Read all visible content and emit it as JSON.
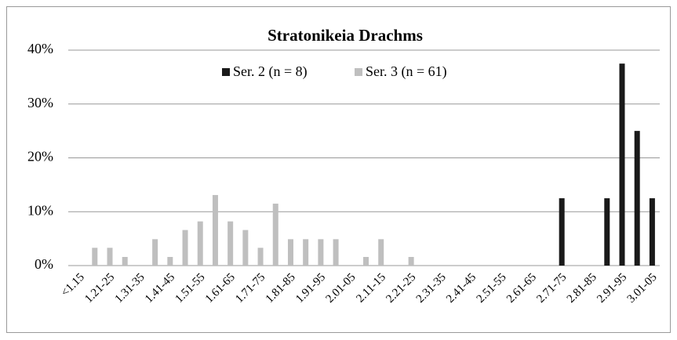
{
  "chart_data": {
    "type": "bar",
    "title": "Stratonikeia Drachms",
    "categories": [
      "<1.15",
      null,
      "1.21-25",
      null,
      "1.31-35",
      null,
      "1.41-45",
      null,
      "1.51-55",
      null,
      "1.61-65",
      null,
      "1.71-75",
      null,
      "1.81-85",
      null,
      "1.91-95",
      null,
      "2.01-05",
      null,
      "2.11-15",
      null,
      "2.21-25",
      null,
      "2.31-35",
      null,
      "2.41-45",
      null,
      "2.51-55",
      null,
      "2.61-65",
      null,
      "2.71-75",
      null,
      "2.81-85",
      null,
      "2.91-95",
      null,
      "3.01-05"
    ],
    "series": [
      {
        "name": "Ser. 2 (n = 8)",
        "color": "#1a1a1a",
        "values": [
          0,
          0,
          0,
          0,
          0,
          0,
          0,
          0,
          0,
          0,
          0,
          0,
          0,
          0,
          0,
          0,
          0,
          0,
          0,
          0,
          0,
          0,
          0,
          0,
          0,
          0,
          0,
          0,
          0,
          0,
          0,
          0,
          12.5,
          0,
          0,
          12.5,
          37.5,
          25,
          12.5
        ]
      },
      {
        "name": "Ser. 3 (n = 61)",
        "color": "#bfbfbf",
        "values": [
          0,
          3.3,
          3.3,
          1.6,
          0,
          4.9,
          1.6,
          6.6,
          8.2,
          13.1,
          8.2,
          6.6,
          3.3,
          11.5,
          4.9,
          4.9,
          4.9,
          4.9,
          0,
          1.6,
          4.9,
          0,
          1.6,
          0,
          0,
          0,
          0,
          0,
          0,
          0,
          0,
          0,
          0,
          0,
          0,
          0,
          0,
          0,
          0
        ]
      }
    ],
    "ylim": [
      0,
      40
    ],
    "yticks": [
      {
        "value": 0,
        "label": "0%"
      },
      {
        "value": 10,
        "label": "10%"
      },
      {
        "value": 20,
        "label": "20%"
      },
      {
        "value": 30,
        "label": "30%"
      },
      {
        "value": 40,
        "label": "40%"
      }
    ],
    "grid": true
  }
}
